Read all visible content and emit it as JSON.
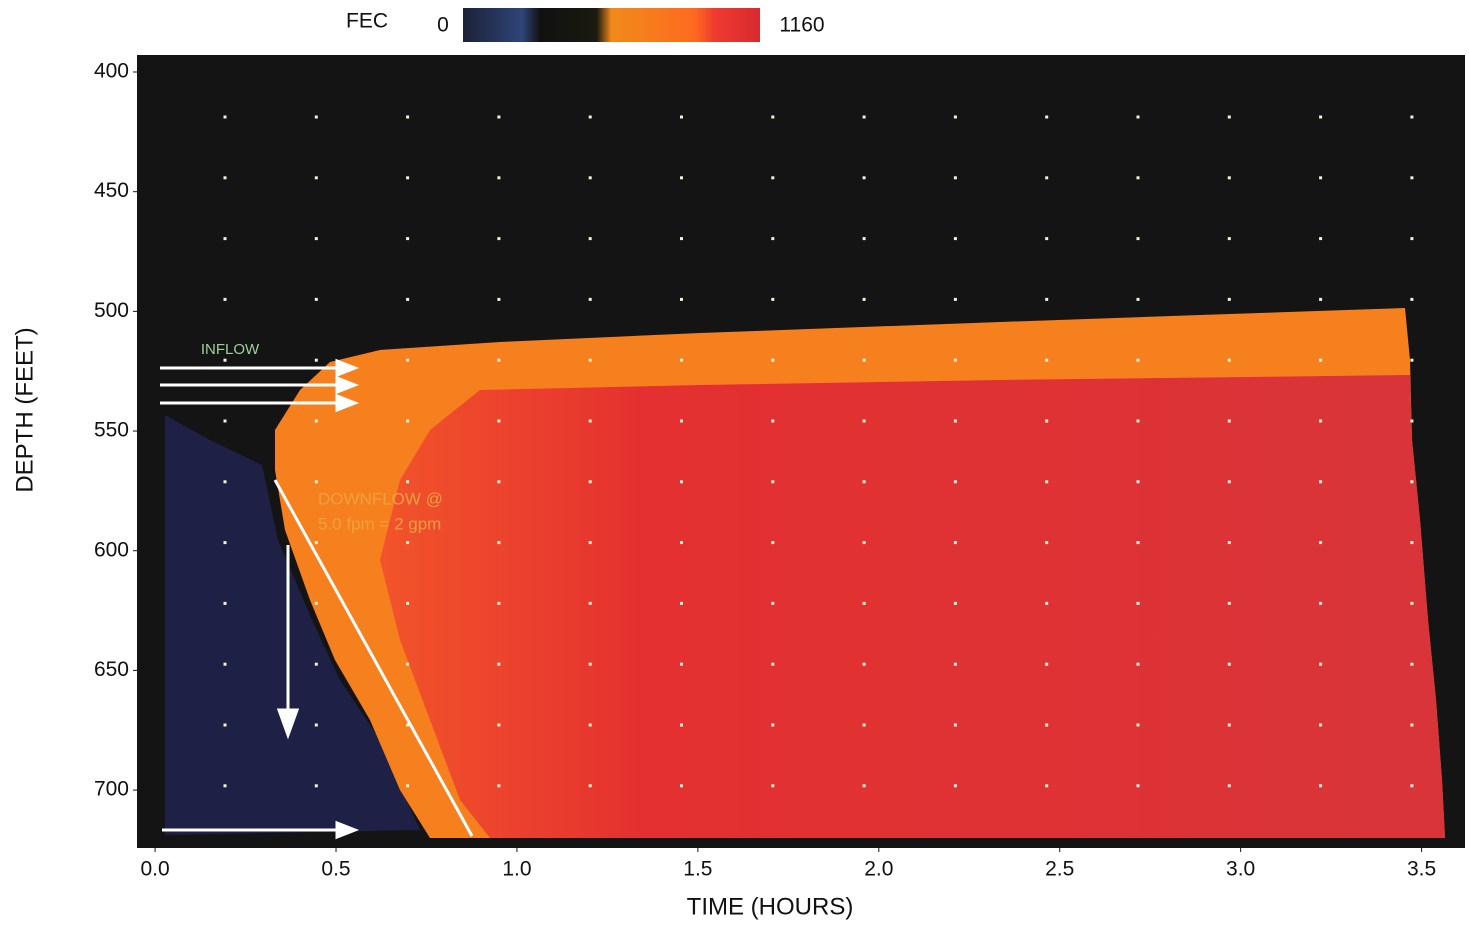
{
  "chart_data": {
    "type": "heatmap",
    "x_label": "TIME (HOURS)",
    "y_label": "DEPTH (FEET)",
    "xlim": [
      -0.05,
      3.62
    ],
    "ylim": [
      392.9,
      724.2
    ],
    "y_inverted": true,
    "xticks": [
      {
        "value": 0,
        "label": "0.0"
      },
      0.5,
      {
        "value": 1,
        "label": "1.0"
      },
      1.5,
      {
        "value": 2,
        "label": "2.0"
      },
      2.5,
      {
        "value": 3,
        "label": "3.0"
      },
      3.5
    ],
    "yticks": [
      400,
      450,
      500,
      550,
      600,
      650,
      700
    ],
    "colorbar": {
      "label": "FEC",
      "lim": [
        0,
        1160
      ]
    },
    "annotations": [
      "INFLOW",
      "DOWNFLOW @",
      "5.0 fpm = 2 gpm"
    ]
  }
}
